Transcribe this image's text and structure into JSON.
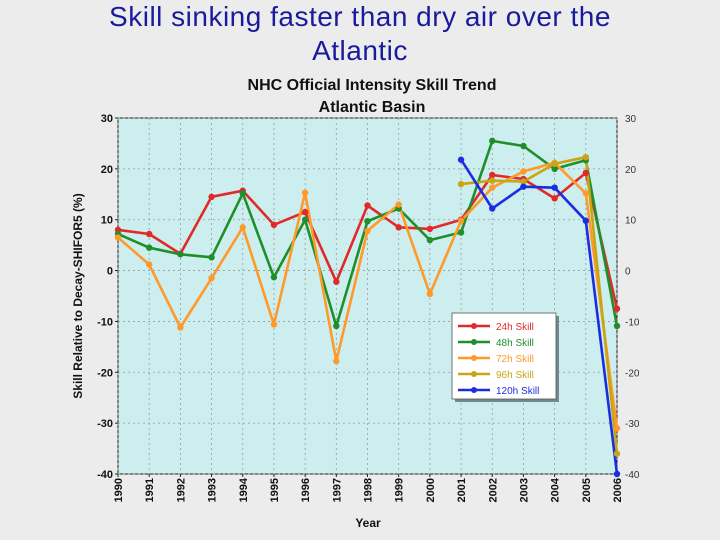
{
  "slide": {
    "title_line1": "Skill sinking faster than dry air over the",
    "title_line2": "Atlantic"
  },
  "chart_data": {
    "type": "line",
    "title": "NHC Official Intensity Skill Trend",
    "subtitle": "Atlantic Basin",
    "xlabel": "Year",
    "ylabel": "Skill Relative to Decay-SHIFOR5 (%)",
    "ylim": [
      -40,
      30
    ],
    "yticks": [
      30,
      20,
      10,
      0,
      -10,
      -20,
      -30,
      -40
    ],
    "yticks_right": [
      30,
      20,
      10,
      0,
      -10,
      -20,
      -30,
      -40
    ],
    "x": [
      1990,
      1991,
      1992,
      1993,
      1994,
      1995,
      1996,
      1997,
      1998,
      1999,
      2000,
      2001,
      2002,
      2003,
      2004,
      2005,
      2006
    ],
    "grid": true,
    "legend_position": "lower-right",
    "background_color": "#cdeeee",
    "series": [
      {
        "name": "24h Skill",
        "color": "#e02a2a",
        "values": [
          8,
          7.2,
          3.3,
          14.5,
          15.7,
          9,
          11.5,
          -2.2,
          12.8,
          8.5,
          8.2,
          10,
          18.8,
          18,
          14.2,
          19.2,
          -7.5
        ]
      },
      {
        "name": "48h Skill",
        "color": "#1e8f2a",
        "values": [
          7.2,
          4.5,
          3.2,
          2.6,
          15.2,
          -1.3,
          10,
          -10.9,
          9.7,
          12.2,
          6,
          7.5,
          25.5,
          24.5,
          20,
          21.7,
          -10.9
        ]
      },
      {
        "name": "72h Skill",
        "color": "#ff9a2a",
        "values": [
          6.5,
          1.2,
          -11.2,
          -1.5,
          8.5,
          -10.6,
          15.3,
          -17.8,
          7.8,
          13,
          -4.6,
          9.8,
          16.3,
          19.5,
          21.2,
          15.2,
          -31
        ]
      },
      {
        "name": "96h Skill",
        "color": "#c9a516",
        "values": [
          null,
          null,
          null,
          null,
          null,
          null,
          null,
          null,
          null,
          null,
          null,
          17,
          17.7,
          17.5,
          21,
          22.3,
          -36
        ]
      },
      {
        "name": "120h Skill",
        "color": "#1a2ee0",
        "values": [
          null,
          null,
          null,
          null,
          null,
          null,
          null,
          null,
          null,
          null,
          null,
          21.8,
          12.2,
          16.5,
          16.3,
          9.8,
          -40
        ]
      }
    ]
  }
}
